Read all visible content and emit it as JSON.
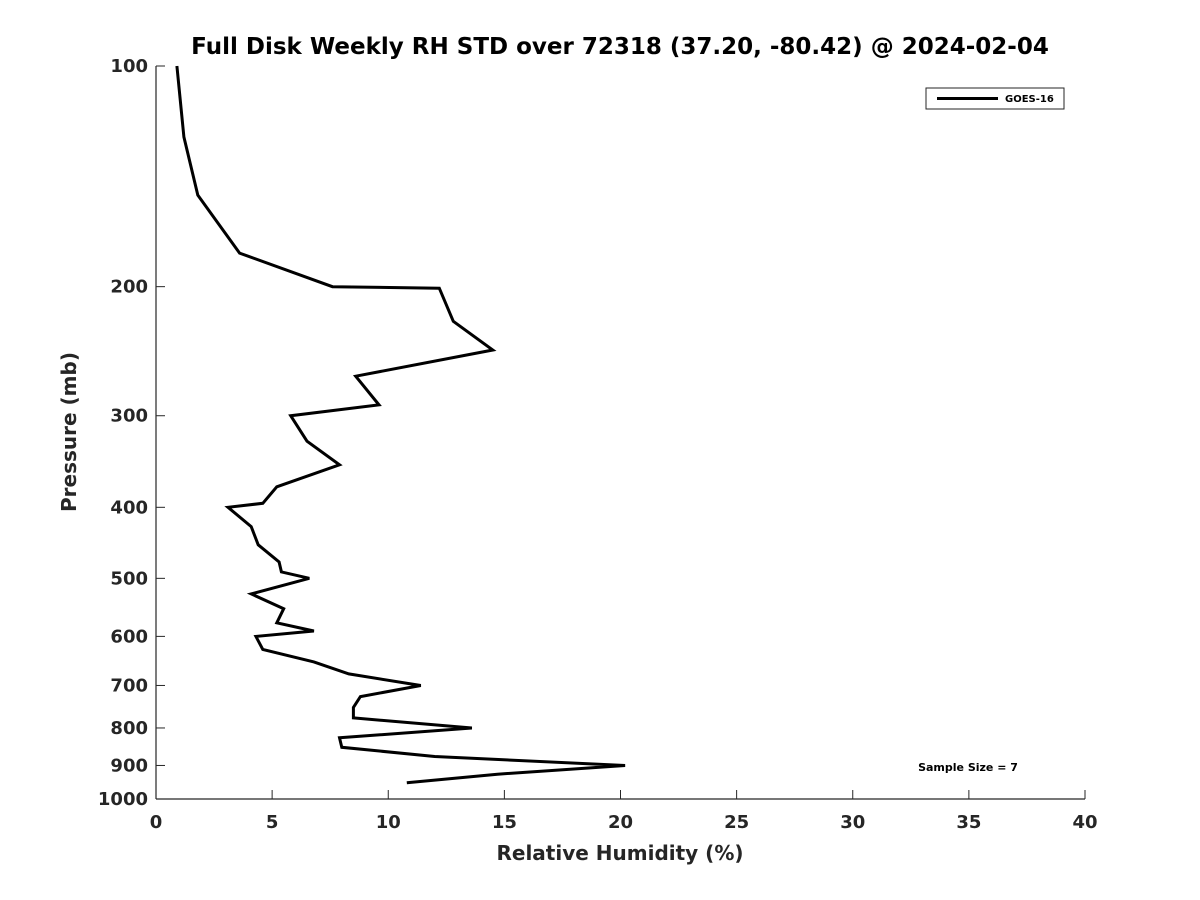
{
  "chart_data": {
    "type": "line",
    "title": "Full Disk Weekly RH STD over 72318 (37.20, -80.42) @ 2024-02-04",
    "xlabel": "Relative Humidity (%)",
    "ylabel": "Pressure (mb)",
    "xlim": [
      0,
      40
    ],
    "ylim": [
      100,
      1000
    ],
    "y_scale": "log",
    "y_reversed": true,
    "x_ticks": [
      0,
      5,
      10,
      15,
      20,
      25,
      30,
      35,
      40
    ],
    "y_ticks": [
      100,
      200,
      300,
      400,
      500,
      600,
      700,
      800,
      900,
      1000
    ],
    "grid": false,
    "legend_position": "top-right",
    "series": [
      {
        "name": "GOES-16",
        "color": "#000000",
        "points": [
          [
            0.9,
            100
          ],
          [
            1.2,
            125
          ],
          [
            1.8,
            150
          ],
          [
            3.6,
            180
          ],
          [
            7.6,
            200
          ],
          [
            12.2,
            201
          ],
          [
            12.8,
            223
          ],
          [
            14.5,
            244
          ],
          [
            8.6,
            265
          ],
          [
            9.6,
            290
          ],
          [
            5.8,
            300
          ],
          [
            6.5,
            325
          ],
          [
            7.9,
            350
          ],
          [
            5.2,
            375
          ],
          [
            4.6,
            395
          ],
          [
            3.1,
            400
          ],
          [
            4.1,
            425
          ],
          [
            4.4,
            450
          ],
          [
            5.3,
            475
          ],
          [
            5.4,
            490
          ],
          [
            6.6,
            500
          ],
          [
            4.1,
            525
          ],
          [
            5.5,
            550
          ],
          [
            5.2,
            575
          ],
          [
            6.8,
            590
          ],
          [
            4.3,
            600
          ],
          [
            4.6,
            625
          ],
          [
            6.8,
            650
          ],
          [
            8.3,
            675
          ],
          [
            11.4,
            700
          ],
          [
            8.8,
            725
          ],
          [
            8.5,
            750
          ],
          [
            8.5,
            775
          ],
          [
            13.6,
            800
          ],
          [
            7.9,
            825
          ],
          [
            8.0,
            850
          ],
          [
            12.0,
            875
          ],
          [
            20.2,
            900
          ],
          [
            14.7,
            925
          ],
          [
            10.8,
            950
          ]
        ]
      }
    ],
    "annotations": [
      {
        "text": "Sample Size = 7"
      }
    ]
  }
}
